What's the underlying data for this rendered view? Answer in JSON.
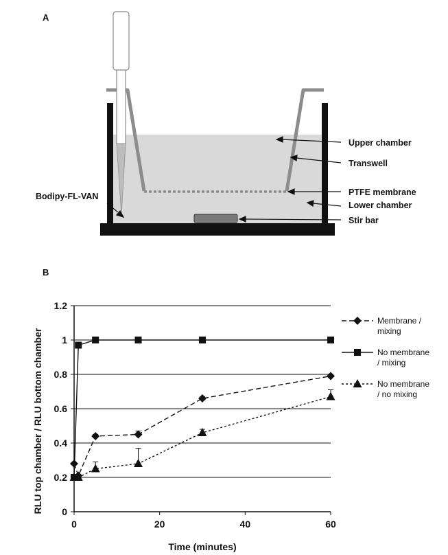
{
  "panel_a": {
    "letter": "A",
    "labels": {
      "upper": "Upper chamber",
      "transwell": "Transwell",
      "membrane": "PTFE membrane",
      "lower": "Lower chamber",
      "stir": "Stir bar",
      "dye": "Bodipy-FL-VAN"
    }
  },
  "panel_b": {
    "letter": "B"
  },
  "chart_data": {
    "type": "line",
    "title": "",
    "xlabel": "Time (minutes)",
    "ylabel": "RLU top chamber / RLU bottom chamber",
    "xlim": [
      0,
      60
    ],
    "ylim": [
      0,
      1.2
    ],
    "xticks": [
      "0",
      "20",
      "40",
      "60"
    ],
    "yticks": [
      "0",
      "0.2",
      "0.4",
      "0.6",
      "0.8",
      "1",
      "1.2"
    ],
    "grid": "horizontal",
    "legend": "right",
    "series": [
      {
        "name": "Membrane / mixing",
        "legend_lines": [
          "Membrane /",
          "mixing"
        ],
        "marker": "diamond",
        "dash": "dashed",
        "x": [
          0,
          1,
          5,
          15,
          30,
          60
        ],
        "y": [
          0.28,
          0.21,
          0.44,
          0.45,
          0.66,
          0.79
        ],
        "err": [
          0,
          0,
          0.01,
          0.02,
          0.01,
          0.01
        ]
      },
      {
        "name": "No membrane / mixing",
        "legend_lines": [
          "No membrane",
          "/ mixing"
        ],
        "marker": "square",
        "dash": "solid",
        "x": [
          0,
          1,
          5,
          15,
          30,
          60
        ],
        "y": [
          0.2,
          0.97,
          1.0,
          1.0,
          1.0,
          1.0
        ],
        "err": [
          0,
          0,
          0,
          0,
          0,
          0
        ]
      },
      {
        "name": "No membrane / no mixing",
        "legend_lines": [
          "No membrane",
          "/ no mixing"
        ],
        "marker": "triangle",
        "dash": "dotted",
        "x": [
          0,
          1,
          5,
          15,
          30,
          60
        ],
        "y": [
          0.2,
          0.2,
          0.25,
          0.28,
          0.46,
          0.67
        ],
        "err": [
          0,
          0,
          0.04,
          0.09,
          0.02,
          0.04
        ]
      }
    ]
  }
}
